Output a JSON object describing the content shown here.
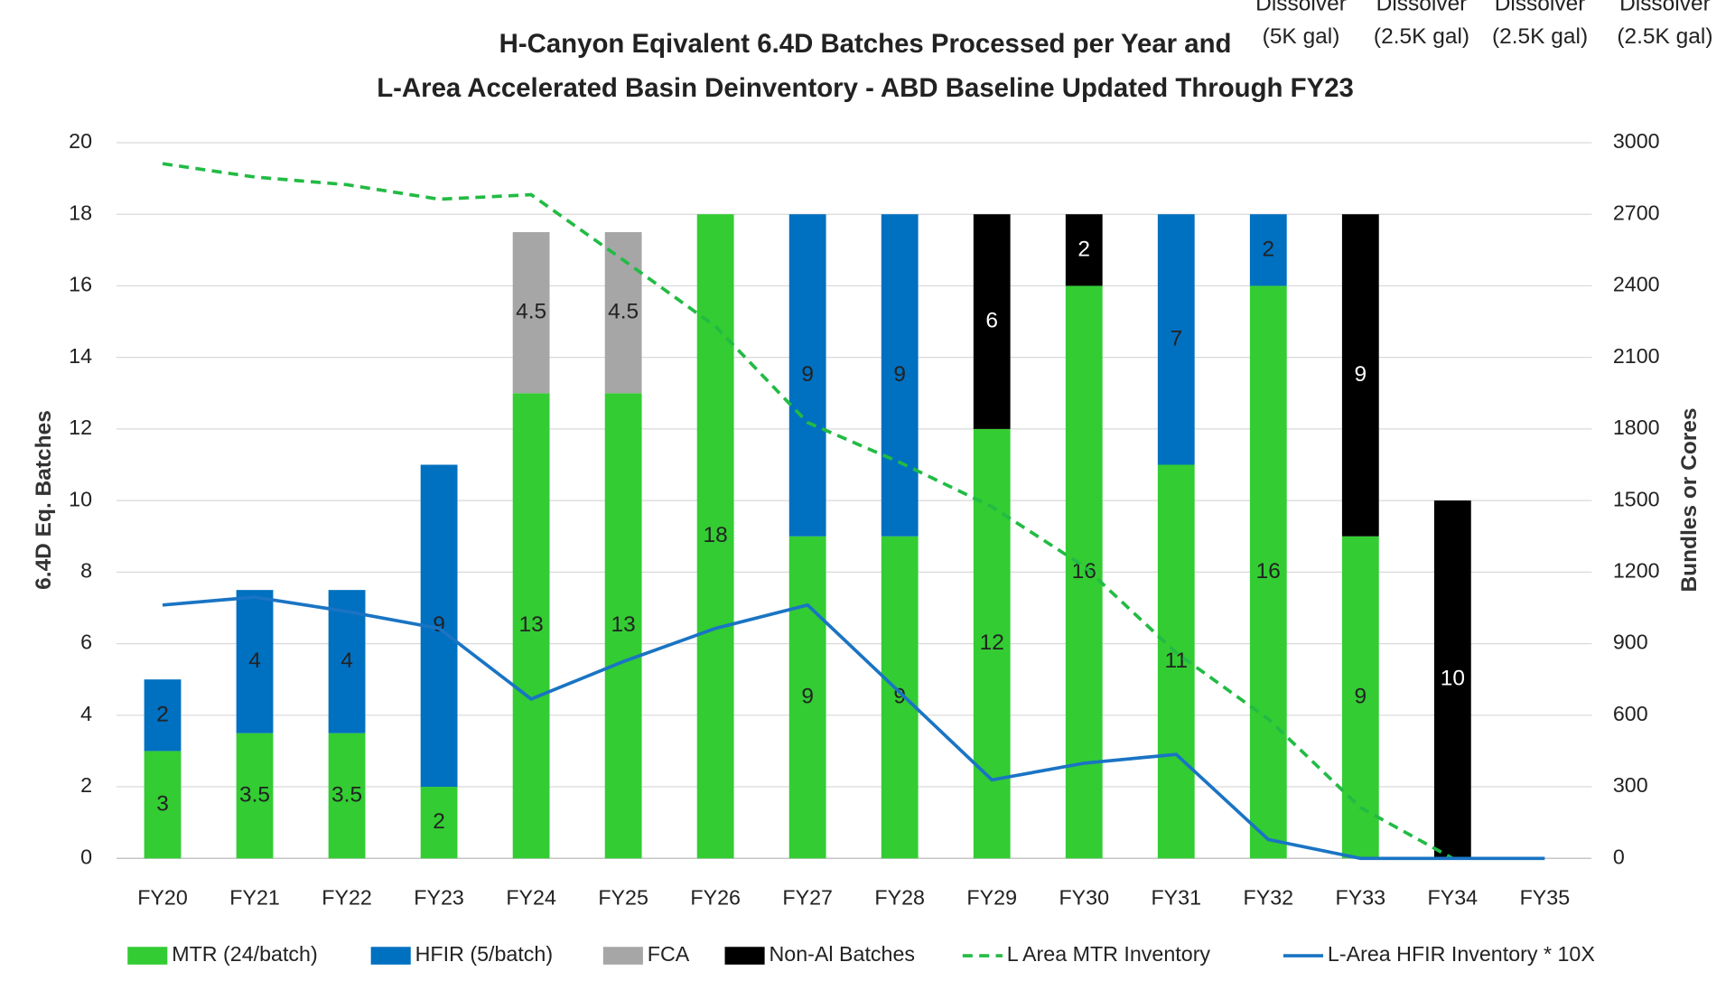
{
  "chart_data": {
    "type": "bar",
    "stacked": true,
    "title": [
      "H-Canyon Eqivalent 6.4D Batches Processed per Year and",
      "L-Area Accelerated Basin Deinventory - ABD Baseline Updated Through FY23"
    ],
    "annotations": [
      "Dissolver",
      "(5K gal)",
      "Dissolver",
      "(2.5K gal)",
      "Dissolver",
      "(2.5K gal)",
      "Dissolver",
      "(2.5K gal)"
    ],
    "y_label": "6.4D Eq. Batches",
    "y2_label": "Bundles or Cores",
    "categories": [
      "FY20",
      "FY21",
      "FY22",
      "FY23",
      "FY24",
      "FY25",
      "FY26",
      "FY27",
      "FY28",
      "FY29",
      "FY30",
      "FY31",
      "FY32",
      "FY33",
      "FY34",
      "FY35"
    ],
    "series": [
      {
        "name": "MTR (24/batch)",
        "color": "#33cc33",
        "values": [
          3,
          3.5,
          3.5,
          2,
          13,
          13,
          18,
          9,
          9,
          12,
          16,
          11,
          16,
          9,
          null,
          null
        ]
      },
      {
        "name": "HFIR (5/batch)",
        "color": "#0070c0",
        "values": [
          2,
          4,
          4,
          9,
          null,
          null,
          null,
          9,
          9,
          null,
          null,
          7,
          2,
          null,
          null,
          null
        ]
      },
      {
        "name": "FCA",
        "color": "#a6a6a6",
        "values": [
          null,
          null,
          null,
          null,
          4.5,
          4.5,
          null,
          null,
          null,
          null,
          null,
          null,
          null,
          null,
          null,
          null
        ]
      },
      {
        "name": "Non-Al Batches",
        "color": "#000000",
        "values": [
          null,
          null,
          null,
          null,
          null,
          null,
          null,
          null,
          null,
          6,
          2,
          null,
          null,
          9,
          10,
          null
        ]
      },
      {
        "name": "L Area MTR Inventory",
        "type": "line",
        "dashed": true,
        "axis": "y2",
        "color": "#22bb44",
        "values": [
          2912,
          2856,
          2824,
          2763,
          2782,
          2508,
          2230,
          1827,
          1660,
          1474,
          1224,
          862,
          584,
          213,
          0,
          null
        ]
      },
      {
        "name": "L-Area HFIR Inventory * 10X",
        "type": "line",
        "axis": "y2",
        "color": "#1a74c4",
        "values": [
          1062,
          1095,
          1035,
          964,
          668,
          825,
          964,
          1062,
          696,
          329,
          399,
          436,
          79,
          0,
          0,
          0
        ]
      }
    ],
    "ylim": [
      0,
      20
    ],
    "yticks": [
      0,
      2,
      4,
      6,
      8,
      10,
      12,
      14,
      16,
      18,
      20
    ],
    "y2lim": [
      0,
      3000
    ],
    "y2ticks": [
      0,
      300,
      600,
      900,
      1200,
      1500,
      1800,
      2100,
      2400,
      2700,
      3000
    ],
    "grid": true,
    "legend": "bottom"
  }
}
